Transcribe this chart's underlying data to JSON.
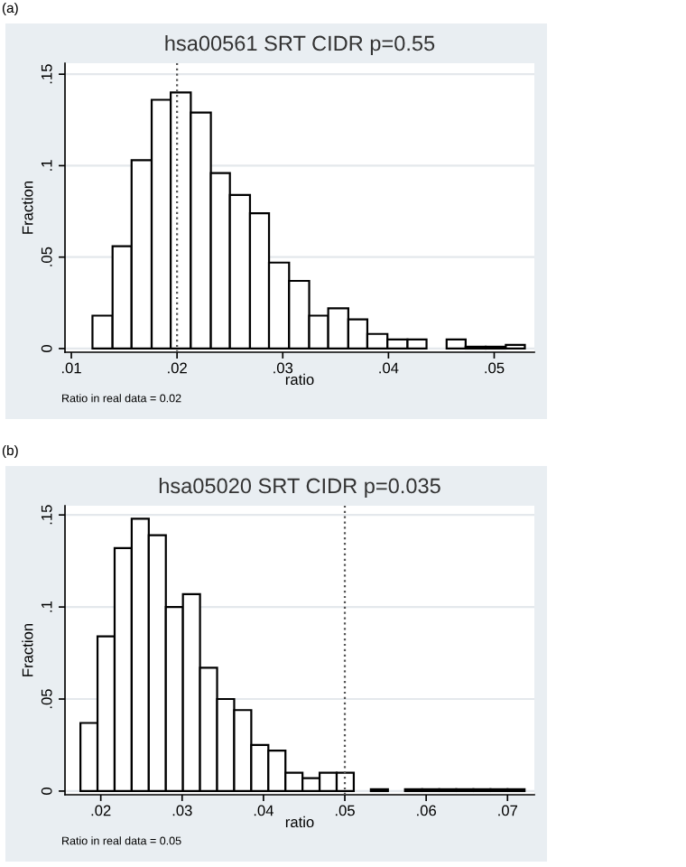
{
  "chart_data": [
    {
      "type": "histogram",
      "title": "hsa00561 SRT CIDR p=0.55",
      "xlabel": "ratio",
      "ylabel": "Fraction",
      "color": "#ffffff",
      "bins": [
        0.012,
        0.0139,
        0.0157,
        0.0176,
        0.0194,
        0.0213,
        0.0232,
        0.025,
        0.0269,
        0.0287,
        0.0306,
        0.0325,
        0.0343,
        0.0362,
        0.038,
        0.0399,
        0.0418,
        0.0436,
        0.0455,
        0.0473,
        0.0492,
        0.0511,
        0.0529
      ],
      "values": [
        0.018,
        0.056,
        0.103,
        0.136,
        0.14,
        0.129,
        0.096,
        0.084,
        0.074,
        0.047,
        0.037,
        0.018,
        0.022,
        0.016,
        0.008,
        0.005,
        0.005,
        0,
        0.005,
        0.001,
        0.001,
        0.002
      ],
      "xlim": [
        0.0094,
        0.0538
      ],
      "ylim": [
        -0.002,
        0.156
      ],
      "xticks": [
        {
          "value": 0.01,
          "label": ".01"
        },
        {
          "value": 0.02,
          "label": ".02"
        },
        {
          "value": 0.03,
          "label": ".03"
        },
        {
          "value": 0.04,
          "label": ".04"
        },
        {
          "value": 0.05,
          "label": ".05"
        }
      ],
      "yticks": [
        0,
        {
          "value": 0.05,
          "label": ".05"
        },
        {
          "value": 0.1,
          "label": ".1"
        },
        {
          "value": 0.15,
          "label": ".15"
        }
      ],
      "grid": "y",
      "ref_lines": [
        {
          "axis": "x",
          "value": 0.02,
          "line_style": "dotted",
          "color": "#555555"
        }
      ],
      "annotations": [
        "(a)",
        "Ratio in real data = 0.02"
      ]
    },
    {
      "type": "histogram",
      "title": "hsa05020 SRT CIDR p=0.035",
      "xlabel": "ratio",
      "ylabel": "Fraction",
      "color": "#ffffff",
      "bins": [
        0.0175,
        0.0196,
        0.0217,
        0.0238,
        0.0259,
        0.028,
        0.0301,
        0.0322,
        0.0343,
        0.0364,
        0.0385,
        0.0406,
        0.0427,
        0.0448,
        0.0469,
        0.049,
        0.0511,
        0.0532,
        0.0553,
        0.0574,
        0.0595,
        0.0616,
        0.0637,
        0.0658,
        0.0679,
        0.07,
        0.0721
      ],
      "values": [
        0.037,
        0.084,
        0.132,
        0.148,
        0.139,
        0.1,
        0.107,
        0.067,
        0.05,
        0.044,
        0.025,
        0.022,
        0.01,
        0.007,
        0.01,
        0.01,
        0,
        0.001,
        0,
        0.001,
        0.001,
        0.001,
        0.001,
        0.001,
        0.001,
        0.001
      ],
      "xlim": [
        0.0156,
        0.0733
      ],
      "ylim": [
        -0.002,
        0.155
      ],
      "xticks": [
        {
          "value": 0.02,
          "label": ".02"
        },
        {
          "value": 0.03,
          "label": ".03"
        },
        {
          "value": 0.04,
          "label": ".04"
        },
        {
          "value": 0.05,
          "label": ".05"
        },
        {
          "value": 0.06,
          "label": ".06"
        },
        {
          "value": 0.07,
          "label": ".07"
        }
      ],
      "yticks": [
        0,
        {
          "value": 0.05,
          "label": ".05"
        },
        {
          "value": 0.1,
          "label": ".1"
        },
        {
          "value": 0.15,
          "label": ".15"
        }
      ],
      "grid": "y",
      "ref_lines": [
        {
          "axis": "x",
          "value": 0.05,
          "line_style": "dotted",
          "color": "#555555"
        }
      ],
      "annotations": [
        "(b)",
        "Ratio in real data = 0.05"
      ]
    }
  ]
}
